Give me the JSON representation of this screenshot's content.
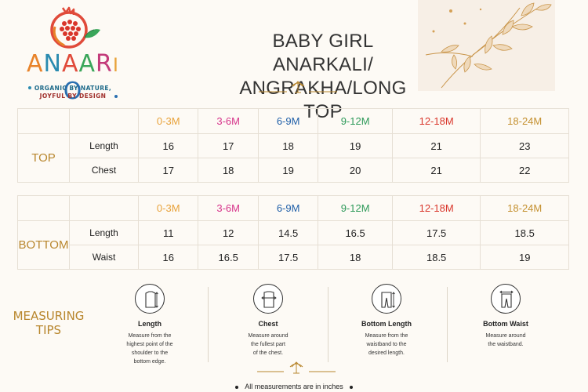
{
  "brand": {
    "letters": [
      "A",
      "N",
      "A",
      "A",
      "R",
      "I",
      "O"
    ],
    "letter_colors": [
      "#e8832a",
      "#2a8bb0",
      "#e04a3a",
      "#3aa65a",
      "#c33b7a",
      "#e8a23a",
      "#2a6fb0"
    ],
    "tagline_1": "ORGANIC BY NATURE,",
    "tagline_2": "JOYFUL BY DESIGN"
  },
  "title": {
    "line_1": "BABY GIRL ANARKALI/",
    "line_2": "ANGRAKHA/LONG TOP"
  },
  "sizes": [
    {
      "label": "0-3M",
      "color": "#e8a23a"
    },
    {
      "label": "3-6M",
      "color": "#d6338a"
    },
    {
      "label": "6-9M",
      "color": "#1f5fa8"
    },
    {
      "label": "9-12M",
      "color": "#2e9a5a"
    },
    {
      "label": "12-18M",
      "color": "#d9362b"
    },
    {
      "label": "18-24M",
      "color": "#c4902f"
    }
  ],
  "top_table": {
    "section": "TOP",
    "rows": [
      {
        "label": "Length",
        "values": [
          "16",
          "17",
          "18",
          "19",
          "21",
          "23"
        ]
      },
      {
        "label": "Chest",
        "values": [
          "17",
          "18",
          "19",
          "20",
          "21",
          "22"
        ]
      }
    ]
  },
  "bottom_table": {
    "section": "BOTTOM",
    "rows": [
      {
        "label": "Length",
        "values": [
          "11",
          "12",
          "14.5",
          "16.5",
          "17.5",
          "18.5"
        ]
      },
      {
        "label": "Waist",
        "values": [
          "16",
          "16.5",
          "17.5",
          "18",
          "18.5",
          "19"
        ]
      }
    ]
  },
  "measuring": {
    "title_1": "MEASURING",
    "title_2": "TIPS",
    "tips": [
      {
        "name": "Length",
        "icon": "shirt-length-icon",
        "desc": [
          "Measure from the",
          "highest point of the",
          "shoulder to the",
          "bottom edge."
        ]
      },
      {
        "name": "Chest",
        "icon": "shirt-chest-icon",
        "desc": [
          "Measure around",
          "the fullest part",
          "of the chest."
        ]
      },
      {
        "name": "Bottom Length",
        "icon": "pants-length-icon",
        "desc": [
          "Measure from the",
          "waistband to the",
          "desired length."
        ]
      },
      {
        "name": "Bottom Waist",
        "icon": "pants-waist-icon",
        "desc": [
          "Measure around",
          "the waistband."
        ]
      }
    ]
  },
  "footnote": "All measurements are in inches",
  "colors": {
    "accent_gold": "#b8862d",
    "border": "#e6dfd4",
    "background": "#fdfaf5"
  }
}
